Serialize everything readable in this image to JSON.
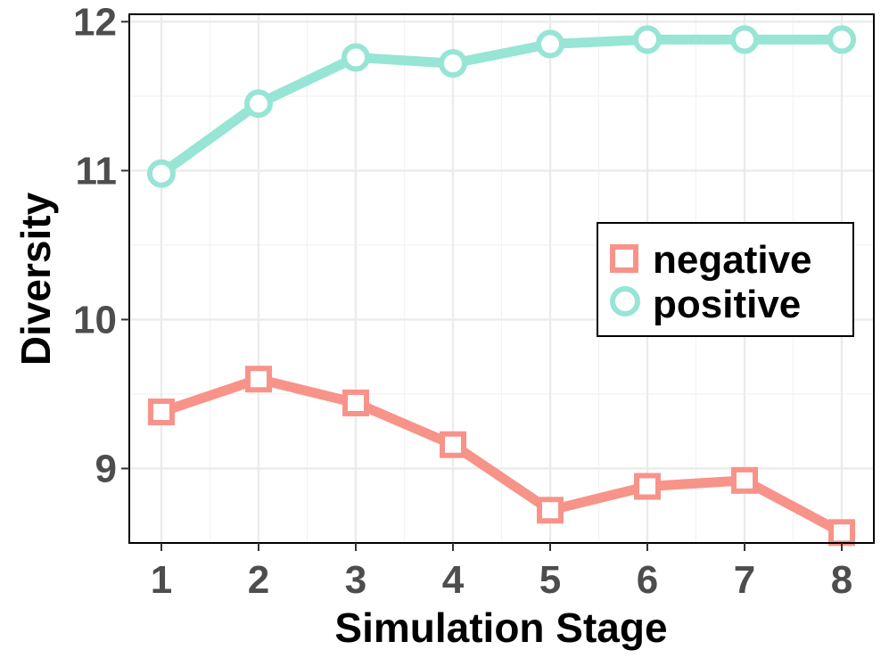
{
  "chart_data": {
    "type": "line",
    "title": "",
    "xlabel": "Simulation Stage",
    "ylabel": "Diversity",
    "x": [
      1,
      2,
      3,
      4,
      5,
      6,
      7,
      8
    ],
    "xlim": [
      0.67,
      8.33
    ],
    "ylim": [
      8.5,
      12.05
    ],
    "yticks": [
      9,
      10,
      11,
      12
    ],
    "grid": true,
    "legend_position": "right",
    "series": [
      {
        "name": "negative",
        "marker": "square",
        "color": "#F8938A",
        "values": [
          9.38,
          9.6,
          9.44,
          9.16,
          8.72,
          8.88,
          8.92,
          8.57
        ]
      },
      {
        "name": "positive",
        "marker": "circle",
        "color": "#97E5D4",
        "values": [
          10.98,
          11.45,
          11.76,
          11.72,
          11.85,
          11.88,
          11.88,
          11.88
        ]
      }
    ]
  }
}
